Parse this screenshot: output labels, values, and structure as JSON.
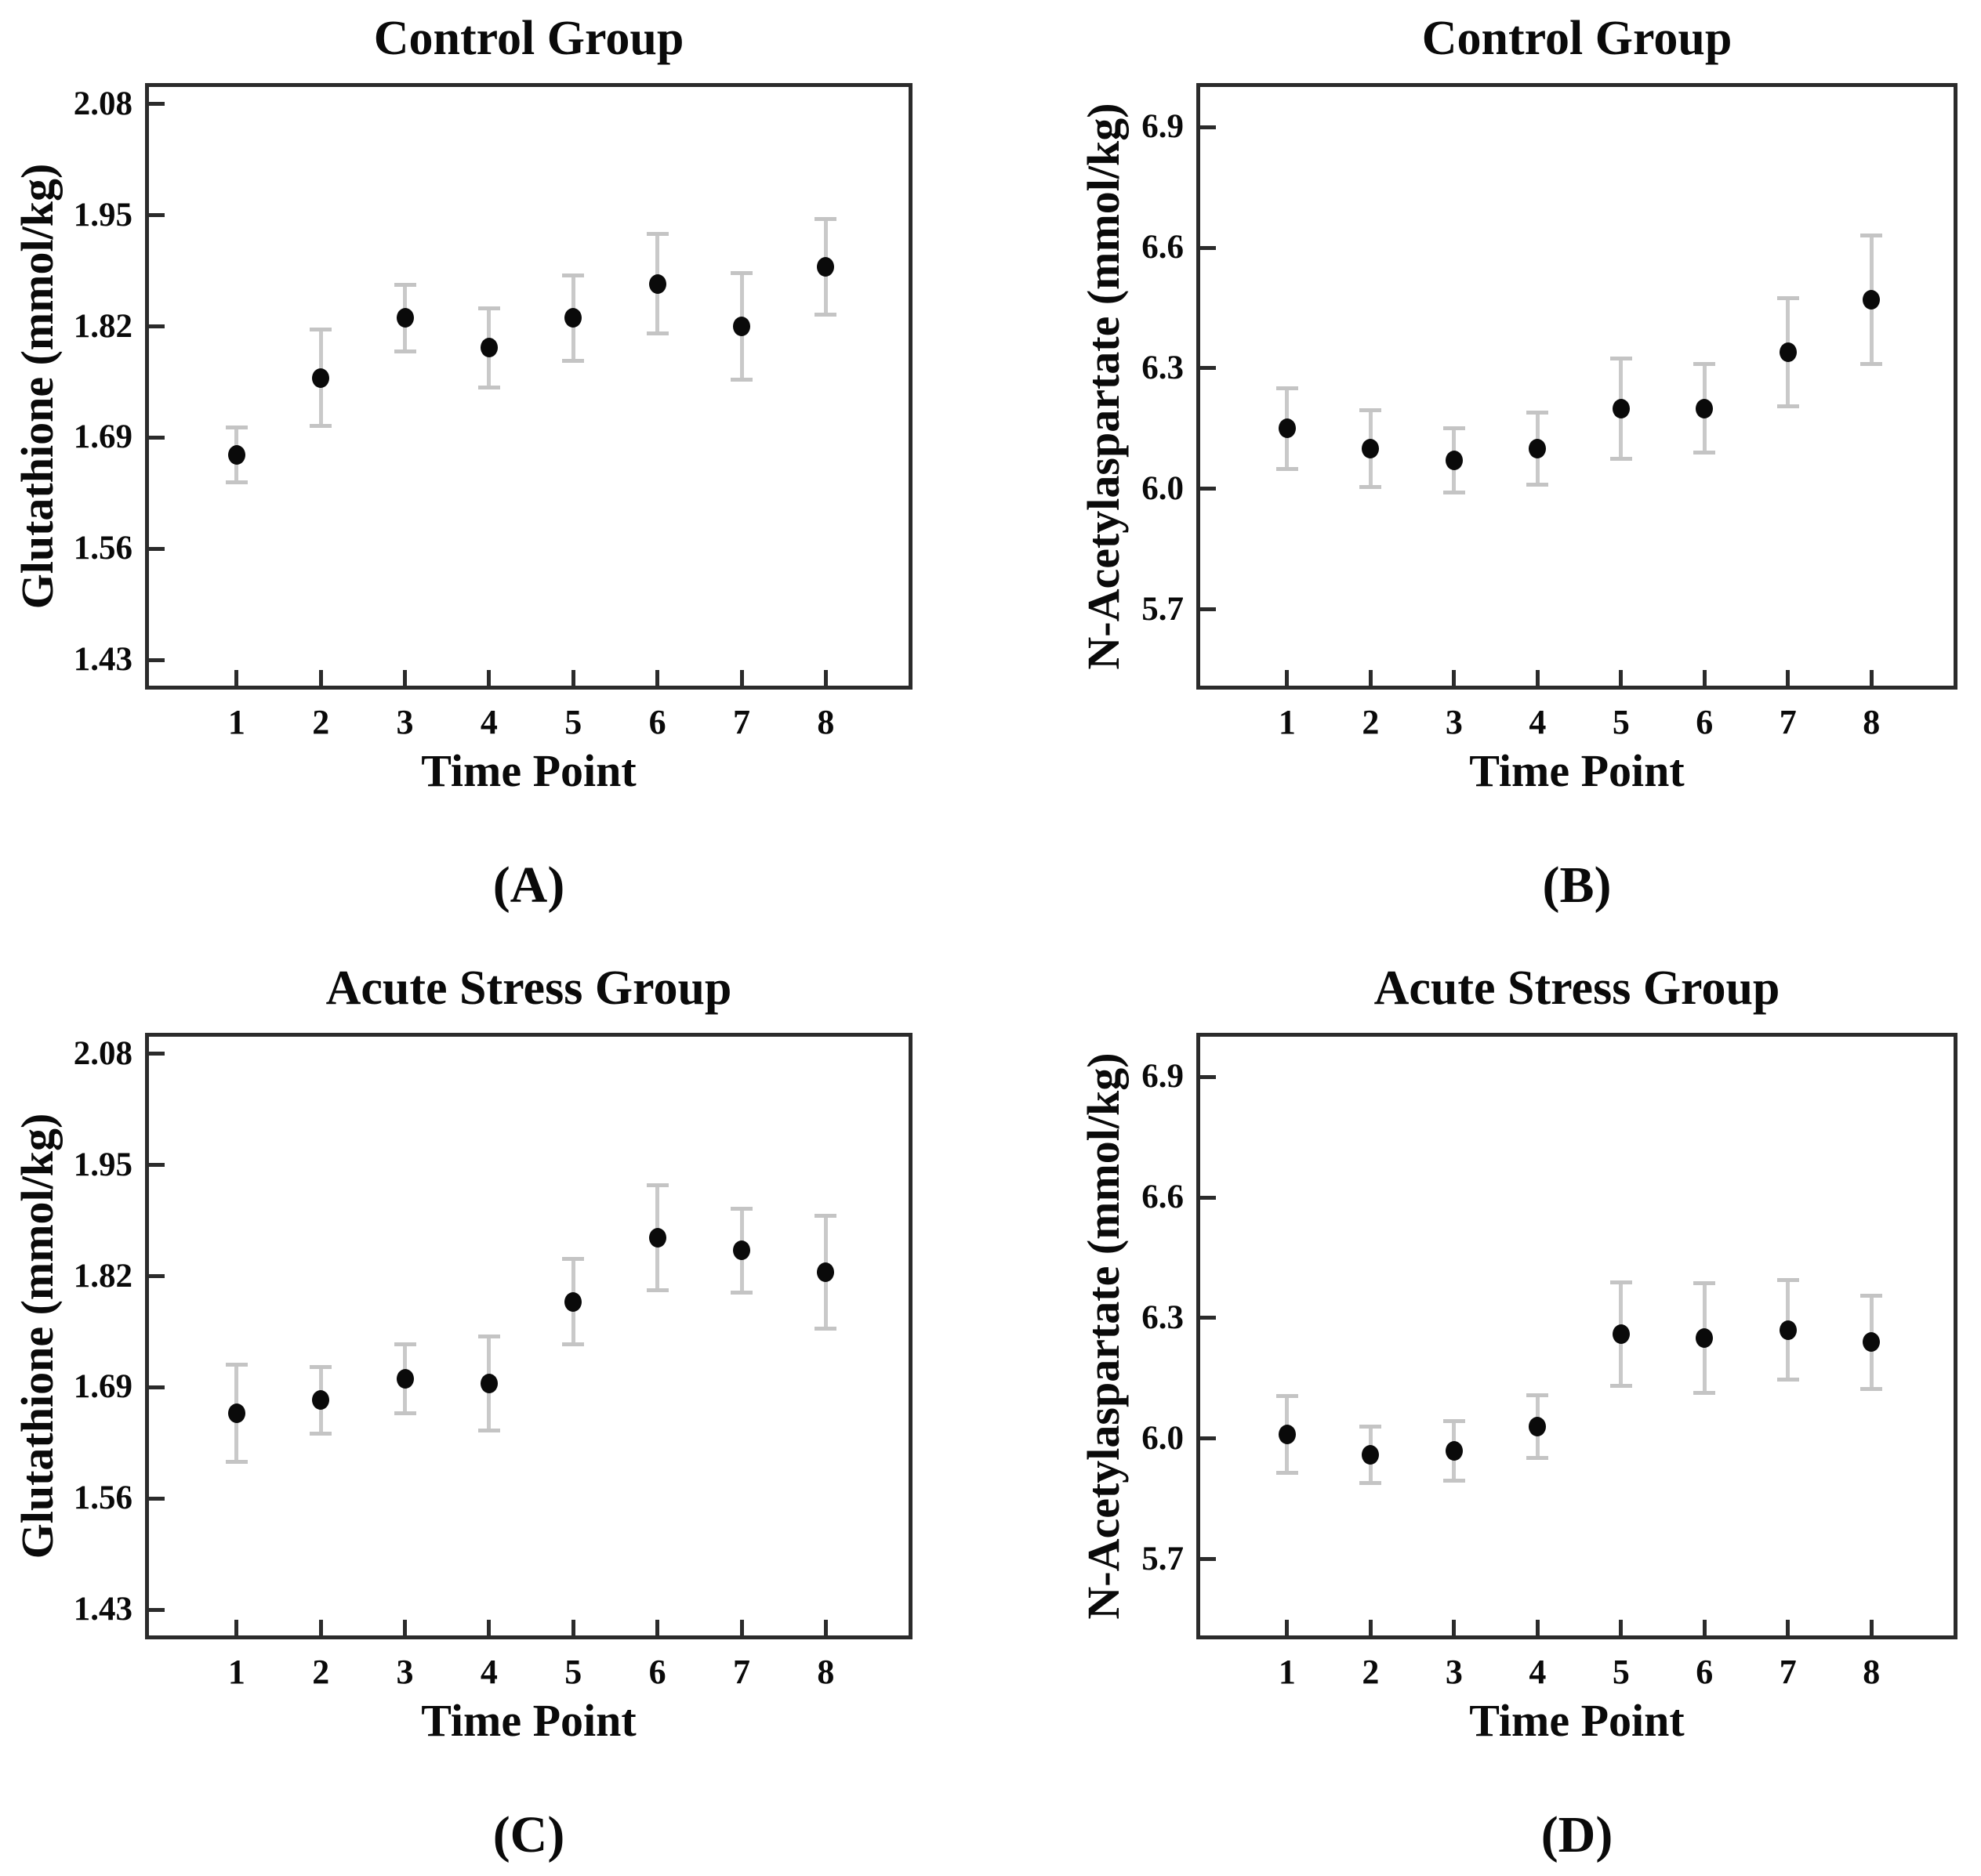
{
  "figure": {
    "kind": "scientific-figure-2x2-error-bar-plots",
    "background": "#ffffff",
    "text_color": "#0a0a0a",
    "axis_color": "#2b2b2b",
    "error_bar_color": "#c9c9c9",
    "marker_color": "#0a0a0a"
  },
  "chart_data": [
    {
      "id": "A",
      "type": "scatter",
      "title": "Control Group",
      "panel_label": "(A)",
      "xlabel": "Time Point",
      "ylabel": "Glutathione (mmol/kg)",
      "categories": [
        "1",
        "2",
        "3",
        "4",
        "5",
        "6",
        "7",
        "8"
      ],
      "values": [
        1.67,
        1.76,
        1.83,
        1.795,
        1.83,
        1.87,
        1.82,
        1.89
      ],
      "errors": [
        0.032,
        0.056,
        0.039,
        0.046,
        0.05,
        0.058,
        0.062,
        0.056
      ],
      "ytick_labels": [
        "2.08",
        "1.95",
        "1.82",
        "1.69",
        "1.56",
        "1.43"
      ],
      "ylim": [
        1.4,
        2.1
      ],
      "grid": false,
      "legend": null,
      "marker": "filled-circle",
      "error_bars": true
    },
    {
      "id": "B",
      "type": "scatter",
      "title": "Control Group",
      "panel_label": "(B)",
      "xlabel": "Time Point",
      "ylabel": "N-Acetylaspartate (mmol/kg)",
      "categories": [
        "1",
        "2",
        "3",
        "4",
        "5",
        "6",
        "7",
        "8"
      ],
      "values": [
        6.15,
        6.1,
        6.07,
        6.1,
        6.2,
        6.2,
        6.34,
        6.47
      ],
      "errors": [
        0.1,
        0.095,
        0.08,
        0.09,
        0.125,
        0.11,
        0.135,
        0.16
      ],
      "ytick_labels": [
        "6.9",
        "6.6",
        "6.3",
        "6.0",
        "5.7"
      ],
      "ylim": [
        5.51,
        7.0
      ],
      "grid": false,
      "legend": null,
      "marker": "filled-circle",
      "error_bars": true
    },
    {
      "id": "C",
      "type": "scatter",
      "title": "Acute Stress Group",
      "panel_label": "(C)",
      "xlabel": "Time Point",
      "ylabel": "Glutathione (mmol/kg)",
      "categories": [
        "1",
        "2",
        "3",
        "4",
        "5",
        "6",
        "7",
        "8"
      ],
      "values": [
        1.66,
        1.675,
        1.7,
        1.695,
        1.79,
        1.865,
        1.85,
        1.825
      ],
      "errors": [
        0.057,
        0.039,
        0.04,
        0.055,
        0.05,
        0.061,
        0.049,
        0.066
      ],
      "ytick_labels": [
        "2.08",
        "1.95",
        "1.82",
        "1.69",
        "1.56",
        "1.43"
      ],
      "ylim": [
        1.4,
        2.1
      ],
      "grid": false,
      "legend": null,
      "marker": "filled-circle",
      "error_bars": true
    },
    {
      "id": "D",
      "type": "scatter",
      "title": "Acute Stress Group",
      "panel_label": "(D)",
      "xlabel": "Time Point",
      "ylabel": "N-Acetylaspartate (mmol/kg)",
      "categories": [
        "1",
        "2",
        "3",
        "4",
        "5",
        "6",
        "7",
        "8"
      ],
      "values": [
        6.01,
        5.96,
        5.97,
        6.03,
        6.26,
        6.25,
        6.27,
        6.24
      ],
      "errors": [
        0.095,
        0.07,
        0.074,
        0.078,
        0.128,
        0.137,
        0.124,
        0.116
      ],
      "ytick_labels": [
        "6.9",
        "6.6",
        "6.3",
        "6.0",
        "5.7"
      ],
      "ylim": [
        5.51,
        7.0
      ],
      "grid": false,
      "legend": null,
      "marker": "filled-circle",
      "error_bars": true
    }
  ]
}
